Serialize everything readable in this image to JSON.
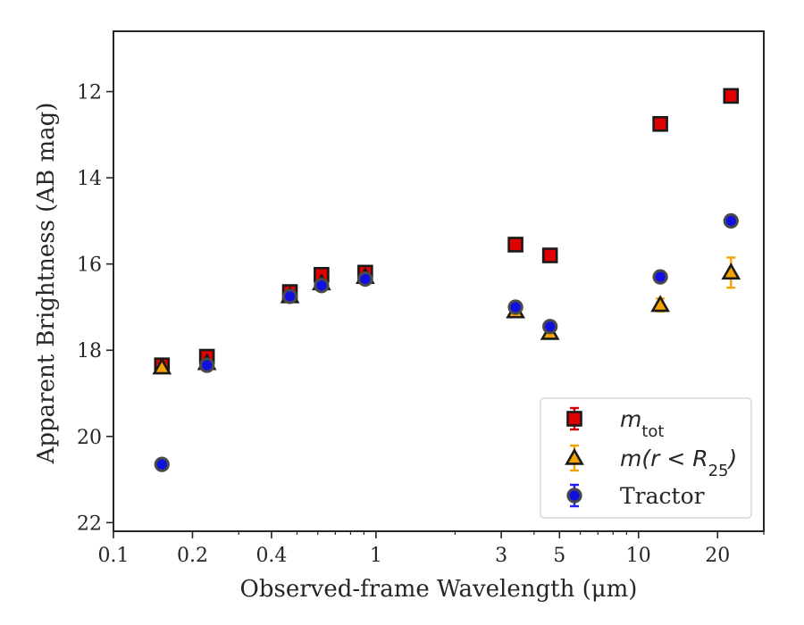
{
  "chart_data": {
    "type": "scatter",
    "xlabel": "Observed-frame Wavelength (μm)",
    "ylabel": "Apparent Brightness (AB mag)",
    "xscale": "log",
    "xlim": [
      0.1,
      30
    ],
    "ylim": [
      22.2,
      10.6
    ],
    "y_inverted": true,
    "x_ticks": [
      {
        "value": 0.1,
        "label": "0.1"
      },
      {
        "value": 0.2,
        "label": "0.2"
      },
      {
        "value": 0.4,
        "label": "0.4"
      },
      {
        "value": 1,
        "label": "1"
      },
      {
        "value": 3,
        "label": "3"
      },
      {
        "value": 5,
        "label": "5"
      },
      {
        "value": 10,
        "label": "10"
      },
      {
        "value": 20,
        "label": "20"
      }
    ],
    "y_ticks": [
      {
        "value": 12,
        "label": "12"
      },
      {
        "value": 14,
        "label": "14"
      },
      {
        "value": 16,
        "label": "16"
      },
      {
        "value": 18,
        "label": "18"
      },
      {
        "value": 20,
        "label": "20"
      },
      {
        "value": 22,
        "label": "22"
      }
    ],
    "grid": false,
    "legend_position": "lower-right",
    "series": [
      {
        "name": "m_tot",
        "legend_label": {
          "base": "m",
          "sub": "tot"
        },
        "marker": "square",
        "fill": "#e00000",
        "edge": "#1a1a1a",
        "errcolor": "#d40000",
        "points": [
          {
            "x": 0.153,
            "y": 18.35,
            "err": 0.05
          },
          {
            "x": 0.227,
            "y": 18.15,
            "err": 0.05
          },
          {
            "x": 0.47,
            "y": 16.65,
            "err": 0.05
          },
          {
            "x": 0.62,
            "y": 16.25,
            "err": 0.05
          },
          {
            "x": 0.91,
            "y": 16.2,
            "err": 0.05
          },
          {
            "x": 3.4,
            "y": 15.55,
            "err": 0.04
          },
          {
            "x": 4.6,
            "y": 15.8,
            "err": 0.04
          },
          {
            "x": 12.1,
            "y": 12.75,
            "err": 0.03
          },
          {
            "x": 22.5,
            "y": 12.1,
            "err": 0.03
          }
        ]
      },
      {
        "name": "m(r < R25)",
        "legend_label": {
          "base": "m(r < R",
          "sub": "25",
          "tail": ")"
        },
        "marker": "triangle",
        "fill": "#f5a300",
        "edge": "#1a1a1a",
        "errcolor": "#f5a300",
        "points": [
          {
            "x": 0.153,
            "y": 18.4,
            "err": 0.05
          },
          {
            "x": 0.227,
            "y": 18.3,
            "err": 0.05
          },
          {
            "x": 0.47,
            "y": 16.75,
            "err": 0.05
          },
          {
            "x": 0.62,
            "y": 16.45,
            "err": 0.05
          },
          {
            "x": 0.91,
            "y": 16.3,
            "err": 0.05
          },
          {
            "x": 3.4,
            "y": 17.1,
            "err": 0.06
          },
          {
            "x": 4.6,
            "y": 17.6,
            "err": 0.06
          },
          {
            "x": 12.1,
            "y": 16.95,
            "err": 0.15
          },
          {
            "x": 22.5,
            "y": 16.2,
            "err": 0.35
          }
        ]
      },
      {
        "name": "Tractor",
        "legend_label": {
          "base": "Tractor"
        },
        "marker": "circle",
        "fill": "#1010e0",
        "edge": "#4a4a4a",
        "errcolor": "#2020ff",
        "points": [
          {
            "x": 0.153,
            "y": 20.65,
            "err": 0.05
          },
          {
            "x": 0.227,
            "y": 18.35,
            "err": 0.05
          },
          {
            "x": 0.47,
            "y": 16.75,
            "err": 0.05
          },
          {
            "x": 0.62,
            "y": 16.5,
            "err": 0.05
          },
          {
            "x": 0.91,
            "y": 16.35,
            "err": 0.05
          },
          {
            "x": 3.4,
            "y": 17.0,
            "err": 0.05
          },
          {
            "x": 4.6,
            "y": 17.45,
            "err": 0.05
          },
          {
            "x": 12.1,
            "y": 16.3,
            "err": 0.05
          },
          {
            "x": 22.5,
            "y": 15.0,
            "err": 0.05
          }
        ]
      }
    ]
  }
}
